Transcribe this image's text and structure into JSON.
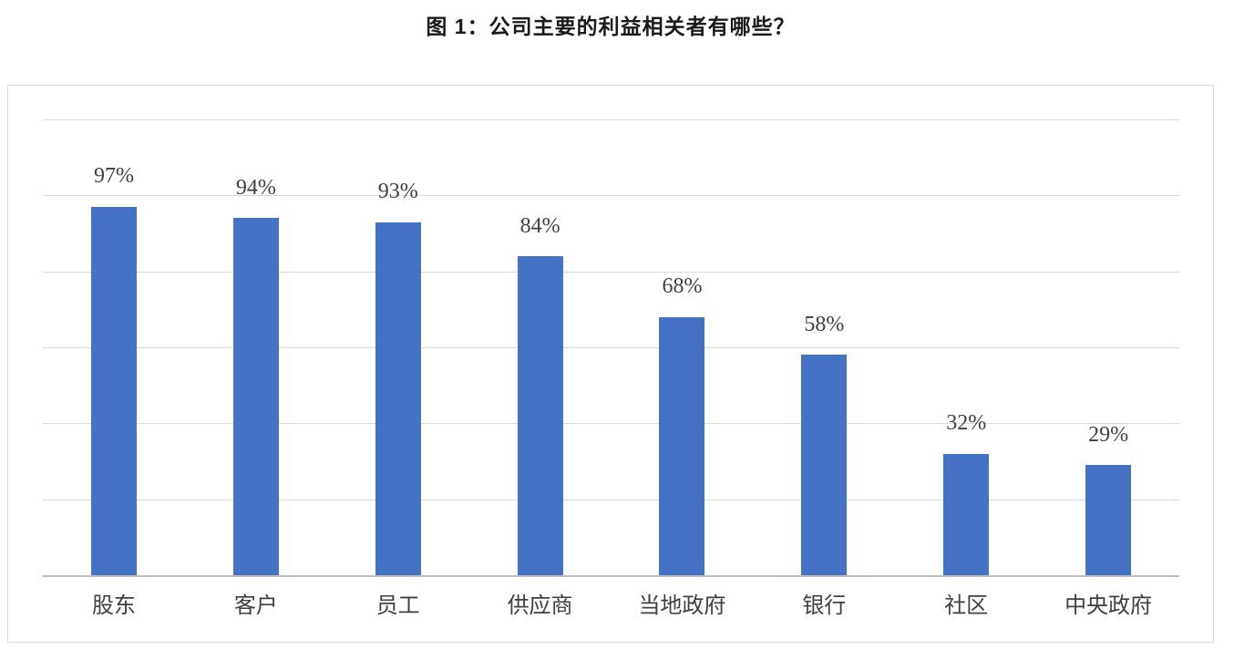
{
  "title": "图 1：公司主要的利益相关者有哪些？",
  "chart_data": {
    "type": "bar",
    "title": "图 1：公司主要的利益相关者有哪些？",
    "categories": [
      "股东",
      "客户",
      "员工",
      "供应商",
      "当地政府",
      "银行",
      "社区",
      "中央政府"
    ],
    "values": [
      97,
      94,
      93,
      84,
      68,
      58,
      32,
      29
    ],
    "data_labels": [
      "97%",
      "94%",
      "93%",
      "84%",
      "68%",
      "58%",
      "32%",
      "29%"
    ],
    "xlabel": "",
    "ylabel": "",
    "ylim": [
      0,
      120
    ],
    "gridline_interval": 20,
    "grid": true,
    "y_tick_labels_visible": false,
    "legend": "none",
    "bar_color": "#4472C4",
    "label_color": "#404040",
    "title_color": "#1a1a1a",
    "gridline_color": "#d9d9d9",
    "axis_color": "#bfbfbf",
    "frame_border_color": "#d9d9d9",
    "background_color": "#ffffff"
  }
}
